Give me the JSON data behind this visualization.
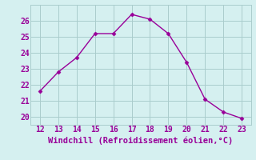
{
  "x": [
    12,
    13,
    14,
    15,
    16,
    17,
    18,
    19,
    20,
    21,
    22,
    23
  ],
  "y": [
    21.6,
    22.8,
    23.7,
    25.2,
    25.2,
    26.4,
    26.1,
    25.2,
    23.4,
    21.1,
    20.3,
    19.9
  ],
  "line_color": "#990099",
  "marker": "D",
  "marker_size": 2.5,
  "bg_color": "#d5f0f0",
  "grid_color": "#aacccc",
  "xlabel": "Windchill (Refroidissement éolien,°C)",
  "xlabel_color": "#990099",
  "xlabel_fontsize": 7.5,
  "tick_color": "#990099",
  "tick_fontsize": 7,
  "xlim": [
    11.5,
    23.5
  ],
  "ylim": [
    19.5,
    27.0
  ],
  "yticks": [
    20,
    21,
    22,
    23,
    24,
    25,
    26
  ],
  "xticks": [
    12,
    13,
    14,
    15,
    16,
    17,
    18,
    19,
    20,
    21,
    22,
    23
  ]
}
